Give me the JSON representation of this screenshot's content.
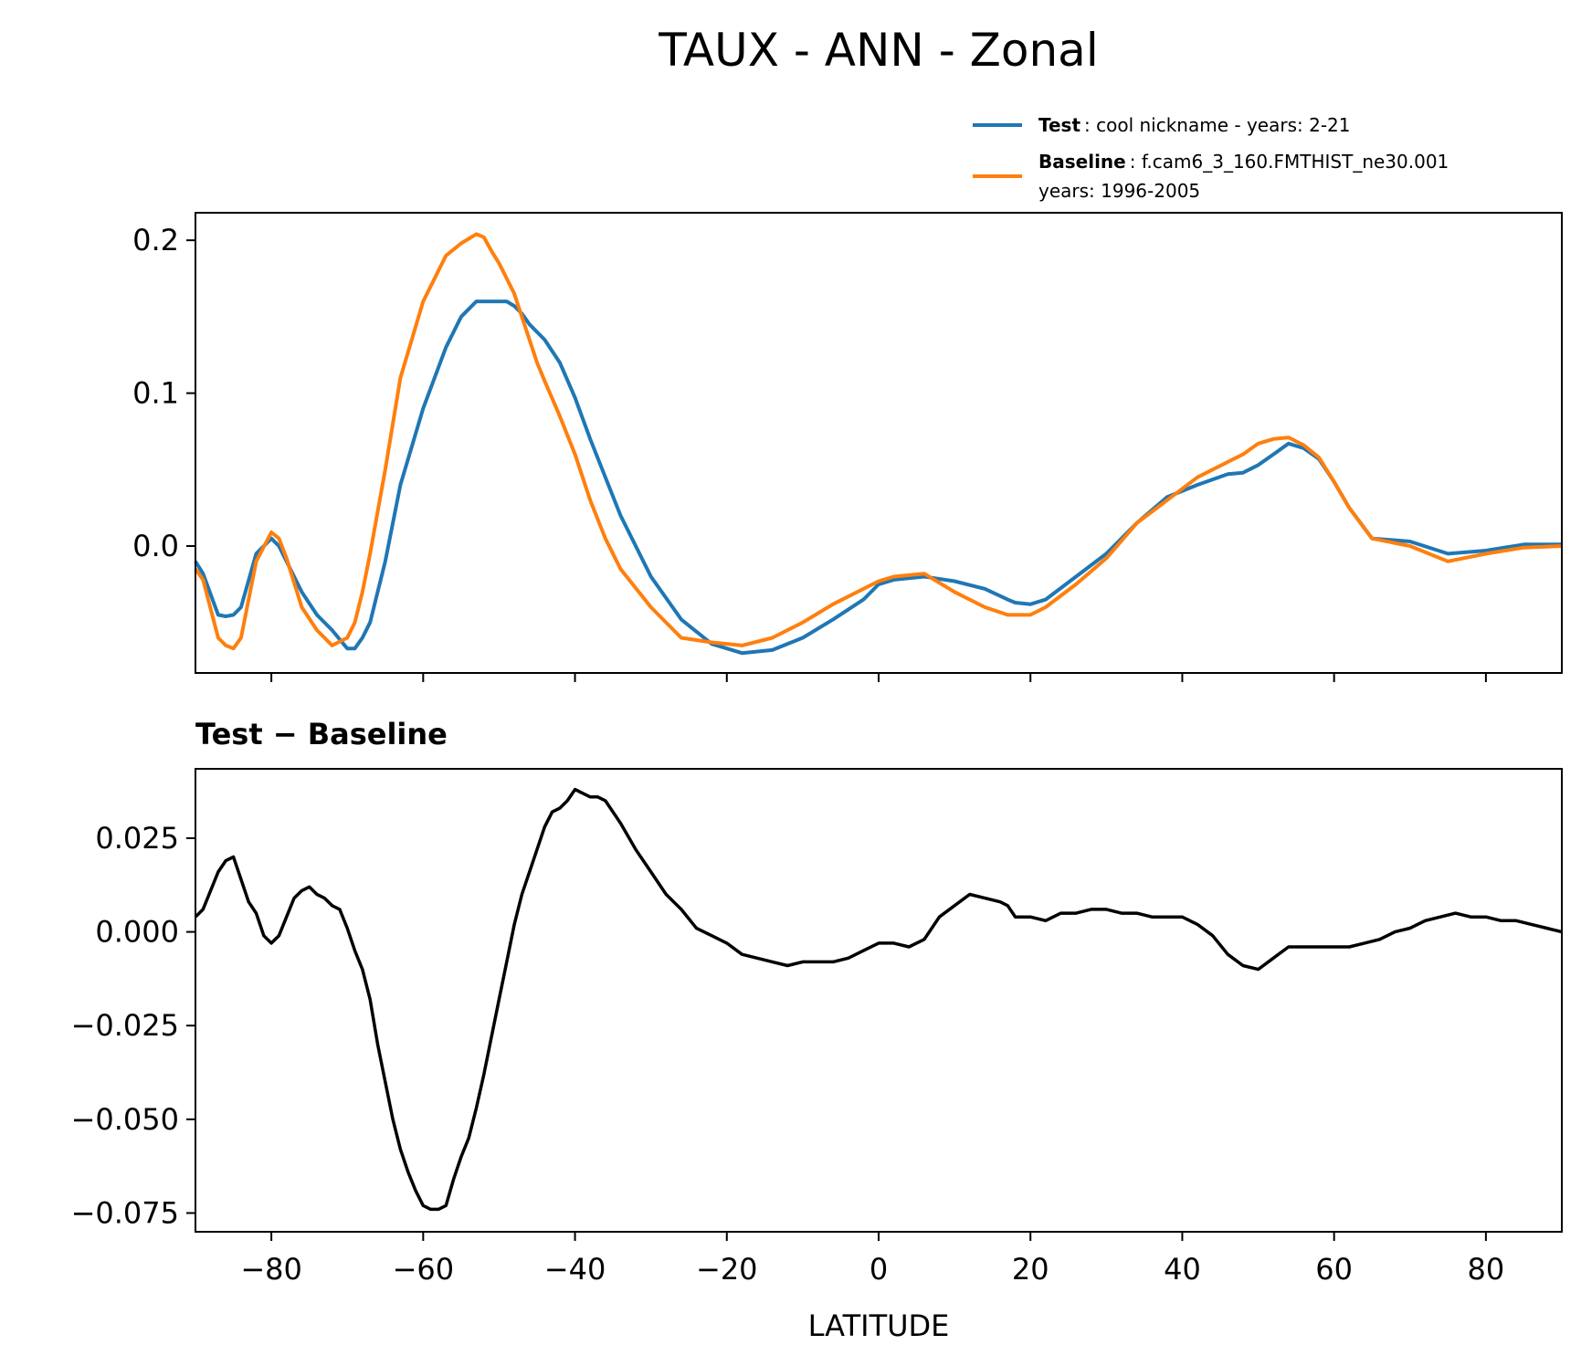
{
  "figure": {
    "title": "TAUX - ANN - Zonal",
    "xlabel": "LATITUDE",
    "subplot_title": "Test − Baseline"
  },
  "legend": {
    "test_bold": "Test",
    "test_rest": ": cool nickname - years: 2-21",
    "baseline_bold": "Baseline",
    "baseline_rest": ": f.cam6_3_160.FMTHIST_ne30.001",
    "baseline_line2": "years: 1996-2005"
  },
  "chart_data": [
    {
      "type": "line",
      "xlim": [
        -90,
        90
      ],
      "ylim": [
        -0.083,
        0.218
      ],
      "xticks": [
        -80,
        -60,
        -40,
        -20,
        0,
        20,
        40,
        60,
        80
      ],
      "yticks": [
        0.0,
        0.1,
        0.2
      ],
      "ytick_labels": [
        "0.0",
        "0.1",
        "0.2"
      ],
      "legend_position": "above-right",
      "grid": false,
      "x": [
        -90,
        -89,
        -87,
        -86,
        -85,
        -84,
        -82,
        -80,
        -79,
        -78,
        -76,
        -74,
        -72,
        -70,
        -69,
        -68,
        -67,
        -65,
        -63,
        -60,
        -57,
        -55,
        -53,
        -52,
        -51,
        -50,
        -49,
        -48,
        -47,
        -46,
        -45,
        -44,
        -42,
        -40,
        -38,
        -36,
        -34,
        -30,
        -26,
        -22,
        -18,
        -14,
        -10,
        -6,
        -2,
        0,
        2,
        6,
        10,
        14,
        17,
        18,
        20,
        22,
        26,
        30,
        34,
        38,
        42,
        46,
        48,
        50,
        52,
        54,
        56,
        58,
        60,
        62,
        65,
        70,
        75,
        80,
        85,
        90
      ],
      "series": [
        {
          "name": "Test",
          "color": "#1f77b4",
          "values": [
            -0.01,
            -0.018,
            -0.045,
            -0.046,
            -0.045,
            -0.04,
            -0.005,
            0.005,
            0.0,
            -0.01,
            -0.03,
            -0.045,
            -0.055,
            -0.067,
            -0.067,
            -0.06,
            -0.05,
            -0.01,
            0.04,
            0.09,
            0.13,
            0.15,
            0.16,
            0.16,
            0.16,
            0.16,
            0.16,
            0.157,
            0.152,
            0.145,
            0.14,
            0.135,
            0.12,
            0.097,
            0.07,
            0.045,
            0.02,
            -0.02,
            -0.048,
            -0.064,
            -0.07,
            -0.068,
            -0.06,
            -0.048,
            -0.035,
            -0.025,
            -0.022,
            -0.02,
            -0.023,
            -0.028,
            -0.035,
            -0.037,
            -0.038,
            -0.035,
            -0.02,
            -0.005,
            0.015,
            0.032,
            0.04,
            0.047,
            0.048,
            0.053,
            0.06,
            0.067,
            0.064,
            0.057,
            0.042,
            0.025,
            0.005,
            0.003,
            -0.005,
            -0.003,
            0.001,
            0.001
          ]
        },
        {
          "name": "Baseline",
          "color": "#ff7f0e",
          "values": [
            -0.015,
            -0.022,
            -0.06,
            -0.065,
            -0.067,
            -0.06,
            -0.01,
            0.009,
            0.005,
            -0.008,
            -0.04,
            -0.055,
            -0.065,
            -0.06,
            -0.05,
            -0.03,
            -0.005,
            0.05,
            0.11,
            0.16,
            0.19,
            0.198,
            0.204,
            0.202,
            0.193,
            0.185,
            0.175,
            0.165,
            0.15,
            0.135,
            0.12,
            0.108,
            0.085,
            0.06,
            0.03,
            0.005,
            -0.015,
            -0.04,
            -0.06,
            -0.063,
            -0.065,
            -0.06,
            -0.05,
            -0.038,
            -0.028,
            -0.023,
            -0.02,
            -0.018,
            -0.03,
            -0.04,
            -0.045,
            -0.045,
            -0.045,
            -0.04,
            -0.025,
            -0.008,
            0.015,
            0.03,
            0.045,
            0.055,
            0.06,
            0.067,
            0.07,
            0.071,
            0.066,
            0.058,
            0.042,
            0.025,
            0.005,
            0.0,
            -0.01,
            -0.005,
            -0.001,
            0.0
          ]
        }
      ]
    },
    {
      "type": "line",
      "title": "Test − Baseline",
      "xlabel": "LATITUDE",
      "xlim": [
        -90,
        90
      ],
      "ylim": [
        -0.08,
        0.0435
      ],
      "xticks": [
        -80,
        -60,
        -40,
        -20,
        0,
        20,
        40,
        60,
        80
      ],
      "yticks": [
        -0.075,
        -0.05,
        -0.025,
        0.0,
        0.025
      ],
      "ytick_labels": [
        "−0.075",
        "−0.050",
        "−0.025",
        "0.000",
        "0.025"
      ],
      "grid": false,
      "x": [
        -90,
        -89,
        -88,
        -87,
        -86,
        -85,
        -84,
        -83,
        -82,
        -81,
        -80,
        -79,
        -78,
        -77,
        -76,
        -75,
        -74,
        -73,
        -72,
        -71,
        -70,
        -69,
        -68,
        -67,
        -66,
        -65,
        -64,
        -63,
        -62,
        -61,
        -60,
        -59,
        -58,
        -57,
        -56,
        -55,
        -54,
        -53,
        -52,
        -51,
        -50,
        -49,
        -48,
        -47,
        -46,
        -45,
        -44,
        -43,
        -42,
        -41,
        -40,
        -39,
        -38,
        -37,
        -36,
        -35,
        -34,
        -32,
        -30,
        -28,
        -26,
        -24,
        -22,
        -20,
        -18,
        -16,
        -14,
        -12,
        -10,
        -8,
        -6,
        -4,
        -2,
        0,
        2,
        4,
        6,
        8,
        10,
        12,
        14,
        16,
        17,
        18,
        20,
        22,
        24,
        26,
        28,
        30,
        32,
        34,
        36,
        38,
        40,
        42,
        44,
        46,
        48,
        50,
        52,
        54,
        56,
        58,
        60,
        62,
        64,
        66,
        68,
        70,
        72,
        74,
        76,
        78,
        80,
        82,
        84,
        86,
        88,
        90
      ],
      "series": [
        {
          "name": "Test − Baseline",
          "color": "#000000",
          "values": [
            0.004,
            0.006,
            0.011,
            0.016,
            0.019,
            0.02,
            0.014,
            0.008,
            0.005,
            -0.001,
            -0.003,
            -0.001,
            0.004,
            0.009,
            0.011,
            0.012,
            0.01,
            0.009,
            0.007,
            0.006,
            0.001,
            -0.005,
            -0.01,
            -0.018,
            -0.03,
            -0.04,
            -0.05,
            -0.058,
            -0.064,
            -0.069,
            -0.073,
            -0.074,
            -0.074,
            -0.073,
            -0.066,
            -0.06,
            -0.055,
            -0.047,
            -0.038,
            -0.028,
            -0.018,
            -0.008,
            0.002,
            0.01,
            0.016,
            0.022,
            0.028,
            0.032,
            0.033,
            0.035,
            0.038,
            0.037,
            0.036,
            0.036,
            0.035,
            0.032,
            0.029,
            0.022,
            0.016,
            0.01,
            0.006,
            0.001,
            -0.001,
            -0.003,
            -0.006,
            -0.007,
            -0.008,
            -0.009,
            -0.008,
            -0.008,
            -0.008,
            -0.007,
            -0.005,
            -0.003,
            -0.003,
            -0.004,
            -0.002,
            0.004,
            0.007,
            0.01,
            0.009,
            0.008,
            0.007,
            0.004,
            0.004,
            0.003,
            0.005,
            0.005,
            0.006,
            0.006,
            0.005,
            0.005,
            0.004,
            0.004,
            0.004,
            0.002,
            -0.001,
            -0.006,
            -0.009,
            -0.01,
            -0.007,
            -0.004,
            -0.004,
            -0.004,
            -0.004,
            -0.004,
            -0.003,
            -0.002,
            0.0,
            0.001,
            0.003,
            0.004,
            0.005,
            0.004,
            0.004,
            0.003,
            0.003,
            0.002,
            0.001,
            0.0
          ]
        }
      ]
    }
  ]
}
